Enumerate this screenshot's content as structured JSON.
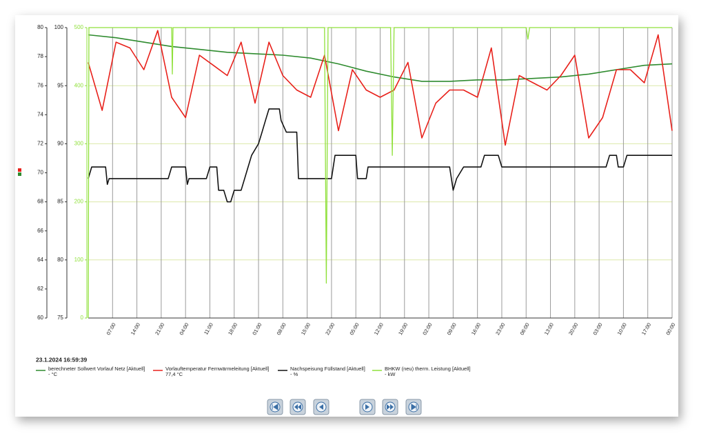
{
  "chart_data": {
    "type": "line",
    "timestamp": "23.1.2024 16:59:39",
    "xlim": [
      0,
      168
    ],
    "xticks": [
      {
        "value": 7,
        "label": "07:00"
      },
      {
        "value": 14,
        "label": "14:00"
      },
      {
        "value": 21,
        "label": "21:00"
      },
      {
        "value": 28,
        "label": "04:00"
      },
      {
        "value": 35,
        "label": "11:00"
      },
      {
        "value": 42,
        "label": "18:00"
      },
      {
        "value": 49,
        "label": "01:00"
      },
      {
        "value": 56,
        "label": "08:00"
      },
      {
        "value": 63,
        "label": "15:00"
      },
      {
        "value": 70,
        "label": "22:00"
      },
      {
        "value": 77,
        "label": "05:00"
      },
      {
        "value": 84,
        "label": "12:00"
      },
      {
        "value": 91,
        "label": "19:00"
      },
      {
        "value": 98,
        "label": "02:00"
      },
      {
        "value": 105,
        "label": "09:00"
      },
      {
        "value": 112,
        "label": "16:00"
      },
      {
        "value": 119,
        "label": "23:00"
      },
      {
        "value": 126,
        "label": "06:00"
      },
      {
        "value": 133,
        "label": "13:00"
      },
      {
        "value": 140,
        "label": "20:00"
      },
      {
        "value": 147,
        "label": "03:00"
      },
      {
        "value": 154,
        "label": "10:00"
      },
      {
        "value": 161,
        "label": "17:00"
      },
      {
        "value": 168,
        "label": "00:00"
      }
    ],
    "ylim": [
      60,
      80
    ],
    "yticks": [
      60,
      62,
      64,
      66,
      68,
      70,
      72,
      74,
      76,
      78,
      80
    ],
    "y2lim": [
      75,
      100
    ],
    "y2ticks": [
      75,
      80,
      85,
      90,
      95,
      100
    ],
    "y3lim": [
      0,
      500
    ],
    "y3ticks": [
      0,
      100,
      200,
      300,
      400,
      500
    ],
    "grid": true,
    "series": [
      {
        "name": "berechneter Sollwert Vorlauf Netz [Aktuell]",
        "current": "- °C",
        "color": "#2e8b2e",
        "x": [
          0,
          8,
          16,
          24,
          32,
          40,
          48,
          56,
          64,
          72,
          80,
          88,
          96,
          104,
          112,
          120,
          128,
          136,
          144,
          152,
          160,
          168
        ],
        "values": [
          79.5,
          79.3,
          79.0,
          78.7,
          78.5,
          78.3,
          78.2,
          78.1,
          77.9,
          77.5,
          77.0,
          76.6,
          76.3,
          76.3,
          76.4,
          76.4,
          76.5,
          76.6,
          76.8,
          77.1,
          77.4,
          77.5
        ]
      },
      {
        "name": "Vorlauftemperatur Fernwärmeleitung [Aktuell]",
        "current": "77,4 °C",
        "color": "#e8201a",
        "x": [
          0,
          4,
          8,
          12,
          16,
          20,
          24,
          28,
          32,
          36,
          40,
          44,
          48,
          52,
          56,
          60,
          64,
          68,
          72,
          76,
          80,
          84,
          88,
          92,
          96,
          100,
          104,
          108,
          112,
          116,
          120,
          124,
          128,
          132,
          136,
          140,
          144,
          148,
          152,
          156,
          160,
          164,
          168
        ],
        "values": [
          77.6,
          74.3,
          79.0,
          78.6,
          77.1,
          79.8,
          75.2,
          73.8,
          78.1,
          77.4,
          76.7,
          79.0,
          74.8,
          79.0,
          76.7,
          75.7,
          75.2,
          78.1,
          72.9,
          77.1,
          75.7,
          75.2,
          75.7,
          77.6,
          72.4,
          74.8,
          75.7,
          75.7,
          75.2,
          78.6,
          71.9,
          76.7,
          76.2,
          75.7,
          76.7,
          78.1,
          72.4,
          73.8,
          77.1,
          77.1,
          76.2,
          79.5,
          72.9
        ]
      },
      {
        "name": "Nachspeisung Füllstand [Aktuell]",
        "current": "- %",
        "color": "#111111",
        "axis": "y2",
        "x": [
          0,
          1,
          5,
          5.5,
          6,
          23,
          24,
          28,
          28.5,
          29,
          34,
          35,
          37,
          37.5,
          39,
          40,
          41,
          42,
          44,
          45,
          46,
          47,
          49,
          50,
          51,
          52,
          55,
          55.5,
          57,
          60,
          60.5,
          70,
          71,
          77,
          77.5,
          80,
          80.5,
          100,
          104,
          105,
          106,
          108,
          113,
          114,
          118,
          119,
          149,
          150,
          152,
          152.5,
          154,
          155,
          168
        ],
        "values": [
          87,
          88,
          88,
          86.5,
          87,
          87,
          88,
          88,
          86.5,
          87,
          87,
          88,
          88,
          86,
          86,
          85,
          85,
          86,
          86,
          87,
          88,
          89,
          90,
          91,
          92,
          93,
          93,
          92,
          91,
          91,
          87,
          87,
          89,
          89,
          87,
          87,
          88,
          88,
          88,
          86,
          87,
          88,
          88,
          89,
          89,
          88,
          88,
          89,
          89,
          88,
          88,
          89,
          89
        ]
      },
      {
        "name": "BHKW (neu) therm. Leistung [Aktuell]",
        "current": "- kW",
        "color": "#8fe03a",
        "axis": "y3",
        "x": [
          0,
          0.2,
          24,
          24.2,
          24.4,
          68,
          68.5,
          69,
          87,
          87.5,
          88,
          126,
          126.5,
          127,
          168
        ],
        "values": [
          0,
          500,
          500,
          420,
          500,
          500,
          60,
          500,
          500,
          280,
          500,
          500,
          480,
          500,
          500
        ]
      }
    ]
  }
}
